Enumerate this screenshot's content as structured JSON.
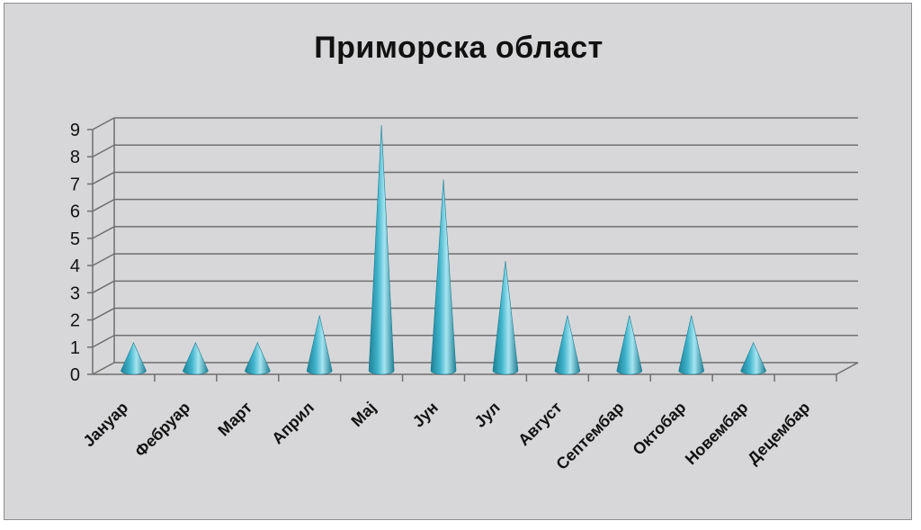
{
  "chart_data": {
    "type": "bar",
    "bar_shape": "cone",
    "style": "3d",
    "title": "Приморска област",
    "xlabel": "",
    "ylabel": "",
    "categories": [
      "Јануар",
      "Фебруар",
      "Март",
      "Април",
      "Мај",
      "Јун",
      "Јул",
      "Август",
      "Септембар",
      "Октобар",
      "Новембар",
      "Децембар"
    ],
    "values": [
      1,
      1,
      1,
      2,
      9,
      7,
      4,
      2,
      2,
      2,
      1,
      0
    ],
    "ylim": [
      0,
      9
    ],
    "yticks": [
      0,
      1,
      2,
      3,
      4,
      5,
      6,
      7,
      8,
      9
    ],
    "grid": true,
    "legend": "none",
    "colors": {
      "cone": "#3fb4cc",
      "cone_dark": "#1f7f94",
      "cone_light": "#a6e4f0",
      "background": "#d7d7d9",
      "grid": "#6f6f6f"
    }
  }
}
